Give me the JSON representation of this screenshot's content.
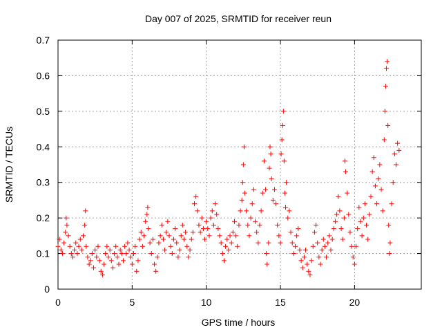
{
  "chart_data": {
    "type": "scatter",
    "title": "Day 007 of 2025, SRMTID for receiver reun",
    "xlabel": "GPS time / hours",
    "ylabel": "SRMTID / TECUs",
    "xlim": [
      0,
      24.5
    ],
    "ylim": [
      0,
      0.7
    ],
    "xticks": [
      0,
      5,
      10,
      15,
      20
    ],
    "xtick_labels": [
      "0",
      "5",
      "10",
      "15",
      "20"
    ],
    "yticks": [
      0,
      0.1,
      0.2,
      0.3,
      0.4,
      0.5,
      0.6,
      0.7
    ],
    "ytick_labels": [
      "0",
      "0.1",
      "0.2",
      "0.3",
      "0.4",
      "0.5",
      "0.6",
      "0.7"
    ],
    "grid": true,
    "marker": "plus",
    "marker_color": "#ff0000",
    "series": [
      {
        "name": "SRMTID",
        "points": [
          [
            0.0,
            0.12
          ],
          [
            0.1,
            0.14
          ],
          [
            0.2,
            0.11
          ],
          [
            0.3,
            0.1
          ],
          [
            0.4,
            0.13
          ],
          [
            0.5,
            0.16
          ],
          [
            0.55,
            0.2
          ],
          [
            0.6,
            0.18
          ],
          [
            0.7,
            0.15
          ],
          [
            0.8,
            0.12
          ],
          [
            0.9,
            0.1
          ],
          [
            1.0,
            0.09
          ],
          [
            1.1,
            0.11
          ],
          [
            1.2,
            0.13
          ],
          [
            1.3,
            0.1
          ],
          [
            1.4,
            0.12
          ],
          [
            1.5,
            0.14
          ],
          [
            1.6,
            0.11
          ],
          [
            1.7,
            0.15
          ],
          [
            1.8,
            0.18
          ],
          [
            1.85,
            0.22
          ],
          [
            1.9,
            0.12
          ],
          [
            2.0,
            0.09
          ],
          [
            2.1,
            0.07
          ],
          [
            2.2,
            0.08
          ],
          [
            2.3,
            0.1
          ],
          [
            2.4,
            0.06
          ],
          [
            2.5,
            0.11
          ],
          [
            2.6,
            0.09
          ],
          [
            2.7,
            0.12
          ],
          [
            2.8,
            0.08
          ],
          [
            2.9,
            0.05
          ],
          [
            3.0,
            0.04
          ],
          [
            3.1,
            0.07
          ],
          [
            3.2,
            0.1
          ],
          [
            3.3,
            0.12
          ],
          [
            3.4,
            0.09
          ],
          [
            3.5,
            0.11
          ],
          [
            3.6,
            0.08
          ],
          [
            3.7,
            0.06
          ],
          [
            3.8,
            0.1
          ],
          [
            3.9,
            0.12
          ],
          [
            4.0,
            0.09
          ],
          [
            4.1,
            0.07
          ],
          [
            4.2,
            0.11
          ],
          [
            4.3,
            0.1
          ],
          [
            4.4,
            0.08
          ],
          [
            4.5,
            0.12
          ],
          [
            4.6,
            0.1
          ],
          [
            4.7,
            0.13
          ],
          [
            4.8,
            0.11
          ],
          [
            4.9,
            0.09
          ],
          [
            5.0,
            0.07
          ],
          [
            5.1,
            0.1
          ],
          [
            5.2,
            0.12
          ],
          [
            5.3,
            0.05
          ],
          [
            5.4,
            0.08
          ],
          [
            5.5,
            0.14
          ],
          [
            5.6,
            0.16
          ],
          [
            5.7,
            0.12
          ],
          [
            5.8,
            0.15
          ],
          [
            5.9,
            0.19
          ],
          [
            6.0,
            0.21
          ],
          [
            6.05,
            0.23
          ],
          [
            6.1,
            0.17
          ],
          [
            6.2,
            0.13
          ],
          [
            6.3,
            0.1
          ],
          [
            6.4,
            0.14
          ],
          [
            6.5,
            0.07
          ],
          [
            6.6,
            0.05
          ],
          [
            6.7,
            0.09
          ],
          [
            6.8,
            0.13
          ],
          [
            6.9,
            0.15
          ],
          [
            7.0,
            0.18
          ],
          [
            7.1,
            0.14
          ],
          [
            7.2,
            0.11
          ],
          [
            7.3,
            0.16
          ],
          [
            7.4,
            0.19
          ],
          [
            7.5,
            0.15
          ],
          [
            7.6,
            0.12
          ],
          [
            7.7,
            0.1
          ],
          [
            7.8,
            0.14
          ],
          [
            7.9,
            0.17
          ],
          [
            8.0,
            0.13
          ],
          [
            8.1,
            0.09
          ],
          [
            8.2,
            0.11
          ],
          [
            8.3,
            0.15
          ],
          [
            8.4,
            0.18
          ],
          [
            8.5,
            0.14
          ],
          [
            8.6,
            0.16
          ],
          [
            8.7,
            0.12
          ],
          [
            8.8,
            0.09
          ],
          [
            8.9,
            0.11
          ],
          [
            9.0,
            0.14
          ],
          [
            9.1,
            0.16
          ],
          [
            9.2,
            0.24
          ],
          [
            9.3,
            0.26
          ],
          [
            9.4,
            0.22
          ],
          [
            9.5,
            0.18
          ],
          [
            9.6,
            0.16
          ],
          [
            9.7,
            0.2
          ],
          [
            9.8,
            0.17
          ],
          [
            9.9,
            0.14
          ],
          [
            10.0,
            0.19
          ],
          [
            10.1,
            0.17
          ],
          [
            10.2,
            0.15
          ],
          [
            10.3,
            0.2
          ],
          [
            10.4,
            0.22
          ],
          [
            10.5,
            0.18
          ],
          [
            10.6,
            0.24
          ],
          [
            10.7,
            0.21
          ],
          [
            10.8,
            0.17
          ],
          [
            10.9,
            0.15
          ],
          [
            11.0,
            0.13
          ],
          [
            11.1,
            0.1
          ],
          [
            11.2,
            0.08
          ],
          [
            11.3,
            0.12
          ],
          [
            11.4,
            0.14
          ],
          [
            11.5,
            0.11
          ],
          [
            11.6,
            0.15
          ],
          [
            11.7,
            0.13
          ],
          [
            11.8,
            0.16
          ],
          [
            11.9,
            0.19
          ],
          [
            12.0,
            0.15
          ],
          [
            12.1,
            0.12
          ],
          [
            12.2,
            0.18
          ],
          [
            12.3,
            0.22
          ],
          [
            12.4,
            0.25
          ],
          [
            12.45,
            0.3
          ],
          [
            12.5,
            0.35
          ],
          [
            12.55,
            0.4
          ],
          [
            12.6,
            0.27
          ],
          [
            12.7,
            0.22
          ],
          [
            12.8,
            0.18
          ],
          [
            12.9,
            0.15
          ],
          [
            13.0,
            0.2
          ],
          [
            13.1,
            0.24
          ],
          [
            13.2,
            0.28
          ],
          [
            13.3,
            0.19
          ],
          [
            13.4,
            0.16
          ],
          [
            13.5,
            0.13
          ],
          [
            13.6,
            0.18
          ],
          [
            13.7,
            0.22
          ],
          [
            13.8,
            0.27
          ],
          [
            13.9,
            0.36
          ],
          [
            14.0,
            0.28
          ],
          [
            14.05,
            0.1
          ],
          [
            14.1,
            0.07
          ],
          [
            14.2,
            0.13
          ],
          [
            14.25,
            0.34
          ],
          [
            14.3,
            0.4
          ],
          [
            14.35,
            0.38
          ],
          [
            14.4,
            0.31
          ],
          [
            14.5,
            0.25
          ],
          [
            14.6,
            0.28
          ],
          [
            14.7,
            0.24
          ],
          [
            14.8,
            0.18
          ],
          [
            14.9,
            0.15
          ],
          [
            15.0,
            0.13
          ],
          [
            15.05,
            0.38
          ],
          [
            15.1,
            0.42
          ],
          [
            15.15,
            0.46
          ],
          [
            15.2,
            0.5
          ],
          [
            15.25,
            0.36
          ],
          [
            15.3,
            0.27
          ],
          [
            15.35,
            0.23
          ],
          [
            15.4,
            0.3
          ],
          [
            15.5,
            0.2
          ],
          [
            15.6,
            0.22
          ],
          [
            15.7,
            0.16
          ],
          [
            15.8,
            0.13
          ],
          [
            15.9,
            0.1
          ],
          [
            16.0,
            0.12
          ],
          [
            16.1,
            0.15
          ],
          [
            16.2,
            0.17
          ],
          [
            16.3,
            0.11
          ],
          [
            16.4,
            0.08
          ],
          [
            16.5,
            0.06
          ],
          [
            16.6,
            0.09
          ],
          [
            16.7,
            0.11
          ],
          [
            16.8,
            0.07
          ],
          [
            16.9,
            0.05
          ],
          [
            17.0,
            0.04
          ],
          [
            17.1,
            0.08
          ],
          [
            17.2,
            0.12
          ],
          [
            17.3,
            0.16
          ],
          [
            17.4,
            0.18
          ],
          [
            17.5,
            0.13
          ],
          [
            17.6,
            0.09
          ],
          [
            17.7,
            0.07
          ],
          [
            17.8,
            0.11
          ],
          [
            17.9,
            0.14
          ],
          [
            18.0,
            0.12
          ],
          [
            18.1,
            0.09
          ],
          [
            18.2,
            0.13
          ],
          [
            18.3,
            0.15
          ],
          [
            18.4,
            0.11
          ],
          [
            18.5,
            0.14
          ],
          [
            18.6,
            0.17
          ],
          [
            18.7,
            0.19
          ],
          [
            18.8,
            0.21
          ],
          [
            18.9,
            0.26
          ],
          [
            19.0,
            0.22
          ],
          [
            19.1,
            0.17
          ],
          [
            19.2,
            0.14
          ],
          [
            19.3,
            0.2
          ],
          [
            19.35,
            0.36
          ],
          [
            19.4,
            0.33
          ],
          [
            19.5,
            0.27
          ],
          [
            19.6,
            0.21
          ],
          [
            19.7,
            0.16
          ],
          [
            19.8,
            0.12
          ],
          [
            19.9,
            0.09
          ],
          [
            20.0,
            0.07
          ],
          [
            20.1,
            0.12
          ],
          [
            20.2,
            0.17
          ],
          [
            20.3,
            0.23
          ],
          [
            20.4,
            0.19
          ],
          [
            20.5,
            0.15
          ],
          [
            20.6,
            0.2
          ],
          [
            20.7,
            0.24
          ],
          [
            20.8,
            0.18
          ],
          [
            20.9,
            0.14
          ],
          [
            21.0,
            0.21
          ],
          [
            21.1,
            0.26
          ],
          [
            21.2,
            0.33
          ],
          [
            21.3,
            0.37
          ],
          [
            21.4,
            0.29
          ],
          [
            21.5,
            0.24
          ],
          [
            21.6,
            0.31
          ],
          [
            21.7,
            0.35
          ],
          [
            21.8,
            0.28
          ],
          [
            21.9,
            0.22
          ],
          [
            22.0,
            0.42
          ],
          [
            22.05,
            0.5
          ],
          [
            22.1,
            0.57
          ],
          [
            22.15,
            0.62
          ],
          [
            22.2,
            0.64
          ],
          [
            22.25,
            0.46
          ],
          [
            22.3,
            0.18
          ],
          [
            22.35,
            0.1
          ],
          [
            22.4,
            0.13
          ],
          [
            22.5,
            0.24
          ],
          [
            22.6,
            0.3
          ],
          [
            22.7,
            0.38
          ],
          [
            22.8,
            0.35
          ],
          [
            22.9,
            0.41
          ],
          [
            23.0,
            0.39
          ]
        ]
      }
    ]
  }
}
